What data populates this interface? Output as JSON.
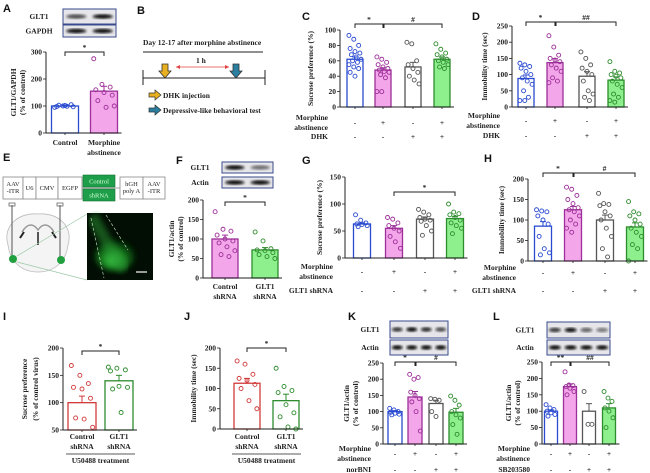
{
  "colors": {
    "blue": "#2a4bd0",
    "magenta": "#9c2f98",
    "pink": "#f4a6ea",
    "green_edge": "#2e8c2e",
    "green_fill": "#8df08d",
    "gray_edge": "#555555",
    "red": "#d23a3a",
    "blot_frame": "#3a4a8e"
  },
  "panel_letters": [
    "A",
    "B",
    "C",
    "D",
    "E",
    "F",
    "G",
    "H",
    "I",
    "J",
    "K",
    "L"
  ],
  "blots": {
    "A": {
      "rows": [
        "GLT1",
        "GAPDH"
      ]
    },
    "F": {
      "rows": [
        "GLT1",
        "Actin"
      ]
    },
    "K": {
      "rows": [
        "GLT1",
        "Actin"
      ]
    },
    "L": {
      "rows": [
        "GLT1",
        "Actin"
      ]
    }
  },
  "timeline": {
    "title": "Day 12-17 after morphine abstinence",
    "interval": "1 h",
    "legend": [
      {
        "label": "DHK injection",
        "icon": "arrow-down-icon",
        "color": "#e8b020"
      },
      {
        "label": "Depressive-like  behavioral test",
        "icon": "arrow-down-icon",
        "color": "#2a7ea0"
      }
    ]
  },
  "construct": {
    "boxes": [
      "AAV\n-ITR",
      "U6",
      "CMV",
      "EGFP",
      "hGH\npoly A",
      "AAV\n-ITR"
    ],
    "inserts": [
      "Control",
      "shRNA"
    ]
  },
  "chart_data": [
    {
      "panel": "A",
      "type": "bar",
      "ylabel": [
        "GLT1/GAPDH",
        "(% of control)"
      ],
      "ylim": [
        0,
        300
      ],
      "yticks": [
        "0",
        "100",
        "200",
        "300"
      ],
      "categories": [
        [
          "Control"
        ],
        [
          "Morphine",
          "abstinence"
        ]
      ],
      "bars": [
        {
          "value": 100,
          "sem": 3,
          "fill": "#ffffff",
          "stroke": "#2a4bd0",
          "points": [
            95,
            100,
            105,
            98,
            102,
            97,
            103,
            99
          ]
        },
        {
          "value": 155,
          "sem": 18,
          "fill": "#f4a6ea",
          "stroke": "#9c2f98",
          "points": [
            275,
            180,
            170,
            160,
            150,
            140,
            120,
            95,
            100
          ]
        }
      ],
      "brackets": [
        {
          "from": 0,
          "to": 1,
          "label": "*"
        }
      ],
      "rows": []
    },
    {
      "panel": "C",
      "type": "bar",
      "ylabel": [
        "Sucrose preference (%)"
      ],
      "ylim": [
        0,
        100
      ],
      "yticks": [
        "0",
        "20",
        "40",
        "60",
        "80",
        "100"
      ],
      "categories": [],
      "bars": [
        {
          "value": 62,
          "sem": 3,
          "fill": "#ffffff",
          "stroke": "#2a4bd0",
          "points": [
            93,
            88,
            80,
            76,
            72,
            70,
            68,
            65,
            62,
            60,
            58,
            55,
            52,
            50,
            45,
            40
          ]
        },
        {
          "value": 48,
          "sem": 3,
          "fill": "#f4a6ea",
          "stroke": "#9c2f98",
          "points": [
            65,
            62,
            58,
            55,
            52,
            50,
            48,
            46,
            45,
            42,
            38,
            20,
            20
          ]
        },
        {
          "value": 52,
          "sem": 6,
          "fill": "#ffffff",
          "stroke": "#555555",
          "points": [
            84,
            82,
            60,
            55,
            50,
            45,
            40,
            35,
            30
          ]
        },
        {
          "value": 62,
          "sem": 3,
          "fill": "#8df08d",
          "stroke": "#2e8c2e",
          "points": [
            82,
            75,
            70,
            68,
            65,
            62,
            60,
            58,
            55,
            52,
            50
          ]
        }
      ],
      "brackets": [
        {
          "from": 0,
          "to": 1,
          "label": "*"
        },
        {
          "from": 1,
          "to": 3,
          "label": "#"
        }
      ],
      "rows": [
        {
          "label": [
            "Morphine",
            "abstinence"
          ],
          "signs": [
            "-",
            "+",
            "-",
            "+"
          ]
        },
        {
          "label": [
            "DHK"
          ],
          "signs": [
            "-",
            "-",
            "+",
            "+"
          ]
        }
      ]
    },
    {
      "panel": "D",
      "type": "bar",
      "ylabel": [
        "Immobility time (sec)"
      ],
      "ylim": [
        0,
        250
      ],
      "yticks": [
        "0",
        "50",
        "100",
        "150",
        "200",
        "250"
      ],
      "categories": [],
      "bars": [
        {
          "value": 88,
          "sem": 11,
          "fill": "#ffffff",
          "stroke": "#2a4bd0",
          "points": [
            135,
            130,
            125,
            120,
            110,
            100,
            90,
            80,
            70,
            50,
            30,
            20,
            20
          ]
        },
        {
          "value": 137,
          "sem": 12,
          "fill": "#f4a6ea",
          "stroke": "#9c2f98",
          "points": [
            220,
            185,
            160,
            150,
            145,
            140,
            130,
            120,
            110,
            90,
            80,
            75
          ]
        },
        {
          "value": 95,
          "sem": 14,
          "fill": "#ffffff",
          "stroke": "#555555",
          "points": [
            170,
            150,
            130,
            120,
            110,
            100,
            80,
            50,
            40,
            30,
            20
          ]
        },
        {
          "value": 83,
          "sem": 10,
          "fill": "#8df08d",
          "stroke": "#2e8c2e",
          "points": [
            140,
            110,
            105,
            100,
            95,
            90,
            80,
            70,
            60,
            40,
            30,
            20,
            15
          ]
        }
      ],
      "brackets": [
        {
          "from": 0,
          "to": 1,
          "label": "*"
        },
        {
          "from": 1,
          "to": 3,
          "label": "##"
        }
      ],
      "rows": [
        {
          "label": [
            "Morphine",
            "abstinence"
          ],
          "signs": [
            "-",
            "+",
            "-",
            "+"
          ]
        },
        {
          "label": [
            "DHK"
          ],
          "signs": [
            "-",
            "-",
            "+",
            "+"
          ]
        }
      ]
    },
    {
      "panel": "F",
      "type": "bar",
      "ylabel": [
        "GLT1/actin",
        "(% of control)"
      ],
      "ylim": [
        0,
        200
      ],
      "yticks": [
        "0",
        "50",
        "100",
        "150",
        "200"
      ],
      "categories": [
        [
          "Control",
          "shRNA"
        ],
        [
          "GLT1",
          "shRNA"
        ]
      ],
      "bars": [
        {
          "value": 100,
          "sem": 10,
          "fill": "#f4a6ea",
          "stroke": "#9c2f98",
          "points": [
            170,
            125,
            120,
            110,
            100,
            95,
            90,
            80,
            70,
            60,
            55
          ]
        },
        {
          "value": 72,
          "sem": 6,
          "fill": "#8df08d",
          "stroke": "#2e8c2e",
          "points": [
            118,
            95,
            75,
            72,
            70,
            65,
            60,
            55,
            50
          ]
        }
      ],
      "brackets": [
        {
          "from": 0,
          "to": 1,
          "label": "*"
        }
      ],
      "rows": []
    },
    {
      "panel": "G",
      "type": "bar",
      "ylabel": [
        "Sucrose preference (%)"
      ],
      "ylim": [
        0,
        150
      ],
      "yticks": [
        "0",
        "50",
        "100",
        "150"
      ],
      "categories": [],
      "bars": [
        {
          "value": 63,
          "sem": 2,
          "fill": "#ffffff",
          "stroke": "#2a4bd0",
          "points": [
            80,
            70,
            65,
            63,
            62,
            60,
            58
          ]
        },
        {
          "value": 55,
          "sem": 5,
          "fill": "#f4a6ea",
          "stroke": "#9c2f98",
          "points": [
            75,
            72,
            65,
            60,
            55,
            50,
            40,
            30,
            18
          ]
        },
        {
          "value": 72,
          "sem": 4,
          "fill": "#ffffff",
          "stroke": "#555555",
          "points": [
            90,
            85,
            80,
            75,
            72,
            70,
            68,
            60,
            50,
            42
          ]
        },
        {
          "value": 73,
          "sem": 4,
          "fill": "#8df08d",
          "stroke": "#2e8c2e",
          "points": [
            100,
            85,
            82,
            80,
            75,
            70,
            65,
            60,
            55,
            45
          ]
        }
      ],
      "brackets": [
        {
          "from": 1,
          "to": 3,
          "label": "*"
        }
      ],
      "rows": [
        {
          "label": [
            "Morphine",
            "abstinence"
          ],
          "signs": [
            "-",
            "+",
            "-",
            "+"
          ]
        },
        {
          "label": [
            "GLT1 shRNA"
          ],
          "signs": [
            "-",
            "-",
            "+",
            "+"
          ]
        }
      ]
    },
    {
      "panel": "H",
      "type": "bar",
      "ylabel": [
        "Immobility time (sec)"
      ],
      "ylim": [
        0,
        200
      ],
      "yticks": [
        "0",
        "50",
        "100",
        "150",
        "200"
      ],
      "categories": [],
      "bars": [
        {
          "value": 85,
          "sem": 11,
          "fill": "#ffffff",
          "stroke": "#2a4bd0",
          "points": [
            125,
            122,
            120,
            110,
            100,
            90,
            60,
            30,
            20,
            15
          ]
        },
        {
          "value": 125,
          "sem": 8,
          "fill": "#f4a6ea",
          "stroke": "#9c2f98",
          "points": [
            180,
            175,
            160,
            150,
            140,
            130,
            125,
            120,
            110,
            100,
            90,
            80,
            70
          ]
        },
        {
          "value": 100,
          "sem": 12,
          "fill": "#ffffff",
          "stroke": "#555555",
          "points": [
            165,
            140,
            138,
            135,
            120,
            110,
            100,
            80,
            60,
            30,
            10
          ]
        },
        {
          "value": 83,
          "sem": 10,
          "fill": "#8df08d",
          "stroke": "#2e8c2e",
          "points": [
            145,
            120,
            115,
            110,
            100,
            90,
            80,
            70,
            60,
            40,
            30,
            0
          ]
        }
      ],
      "brackets": [
        {
          "from": 0,
          "to": 1,
          "label": "*"
        },
        {
          "from": 1,
          "to": 3,
          "label": "#"
        }
      ],
      "rows": [
        {
          "label": [
            "Morphine",
            "abstinence"
          ],
          "signs": [
            "-",
            "+",
            "-",
            "+"
          ]
        },
        {
          "label": [
            "GLT1 shRNA"
          ],
          "signs": [
            "-",
            "-",
            "+",
            "+"
          ]
        }
      ]
    },
    {
      "panel": "I",
      "type": "bar",
      "ylabel": [
        "Sucrose preference",
        "(% of control virus)"
      ],
      "ylim": [
        50,
        200
      ],
      "yticks": [
        "50",
        "100",
        "150",
        "200"
      ],
      "categories": [
        [
          "Control",
          "shRNA"
        ],
        [
          "GLT1",
          "shRNA"
        ]
      ],
      "group_label": "U50488 treatment",
      "bars": [
        {
          "value": 100,
          "sem": 12,
          "fill": "#ffffff",
          "stroke": "#d23a3a",
          "points": [
            168,
            150,
            135,
            128,
            125,
            108,
            72,
            70,
            55
          ]
        },
        {
          "value": 140,
          "sem": 10,
          "fill": "#ffffff",
          "stroke": "#2e8c2e",
          "points": [
            165,
            163,
            160,
            158,
            130,
            128,
            125,
            82
          ]
        }
      ],
      "brackets": [
        {
          "from": 0,
          "to": 1,
          "label": "*"
        }
      ],
      "rows": []
    },
    {
      "panel": "J",
      "type": "bar",
      "ylabel": [
        "Immobility time (sec)"
      ],
      "ylim": [
        0,
        200
      ],
      "yticks": [
        "0",
        "50",
        "100",
        "150",
        "200"
      ],
      "categories": [
        [
          "Control",
          "shRNA"
        ],
        [
          "GLT1",
          "shRNA"
        ]
      ],
      "group_label": "U50488 treatment",
      "bars": [
        {
          "value": 113,
          "sem": 12,
          "fill": "#ffffff",
          "stroke": "#d23a3a",
          "points": [
            168,
            160,
            135,
            125,
            120,
            110,
            100,
            70,
            50
          ]
        },
        {
          "value": 70,
          "sem": 16,
          "fill": "#ffffff",
          "stroke": "#2e8c2e",
          "points": [
            150,
            105,
            95,
            90,
            60,
            40,
            30,
            5,
            0
          ]
        }
      ],
      "brackets": [
        {
          "from": 0,
          "to": 1,
          "label": "*"
        }
      ],
      "rows": []
    },
    {
      "panel": "K",
      "type": "bar",
      "ylabel": [
        "GLT1/actin",
        "(% of control)"
      ],
      "ylim": [
        0,
        250
      ],
      "yticks": [
        "0",
        "50",
        "100",
        "150",
        "200",
        "250"
      ],
      "categories": [],
      "bars": [
        {
          "value": 100,
          "sem": 3,
          "fill": "#ffffff",
          "stroke": "#2a4bd0",
          "points": [
            110,
            105,
            100,
            98,
            95,
            92,
            90
          ]
        },
        {
          "value": 145,
          "sem": 17,
          "fill": "#f4a6ea",
          "stroke": "#9c2f98",
          "points": [
            215,
            200,
            205,
            160,
            150,
            140,
            130,
            100,
            40
          ]
        },
        {
          "value": 125,
          "sem": 10,
          "fill": "#ffffff",
          "stroke": "#555555",
          "points": [
            140,
            138,
            135,
            100,
            85
          ]
        },
        {
          "value": 98,
          "sem": 12,
          "fill": "#8df08d",
          "stroke": "#2e8c2e",
          "points": [
            148,
            135,
            120,
            100,
            90,
            80,
            60,
            30
          ]
        }
      ],
      "brackets": [
        {
          "from": 0,
          "to": 1,
          "label": "*"
        },
        {
          "from": 1,
          "to": 3,
          "label": "#"
        }
      ],
      "rows": [
        {
          "label": [
            "Morphine",
            "abstinence"
          ],
          "signs": [
            "-",
            "+",
            "-",
            "+"
          ]
        },
        {
          "label": [
            "norBNI"
          ],
          "signs": [
            "-",
            "-",
            "+",
            "+"
          ]
        }
      ]
    },
    {
      "panel": "L",
      "type": "bar",
      "ylabel": [
        "GLT1/actin",
        "(% of control)"
      ],
      "ylim": [
        0,
        250
      ],
      "yticks": [
        "0",
        "50",
        "100",
        "150",
        "200",
        "250"
      ],
      "categories": [],
      "bars": [
        {
          "value": 100,
          "sem": 4,
          "fill": "#ffffff",
          "stroke": "#2a4bd0",
          "points": [
            120,
            110,
            105,
            100,
            95,
            90,
            85
          ]
        },
        {
          "value": 175,
          "sem": 8,
          "fill": "#f4a6ea",
          "stroke": "#9c2f98",
          "points": [
            220,
            180,
            178,
            175,
            170,
            160,
            150
          ]
        },
        {
          "value": 100,
          "sem": 23,
          "fill": "#ffffff",
          "stroke": "#555555",
          "points": [
            160,
            60,
            60
          ]
        },
        {
          "value": 110,
          "sem": 13,
          "fill": "#8df08d",
          "stroke": "#2e8c2e",
          "points": [
            160,
            140,
            130,
            110,
            100,
            80,
            50
          ]
        }
      ],
      "brackets": [
        {
          "from": 0,
          "to": 1,
          "label": "**"
        },
        {
          "from": 1,
          "to": 3,
          "label": "##"
        }
      ],
      "rows": [
        {
          "label": [
            "Morphine",
            "abstinence"
          ],
          "signs": [
            "-",
            "+",
            "-",
            "+"
          ]
        },
        {
          "label": [
            "SB203580"
          ],
          "signs": [
            "-",
            "-",
            "+",
            "+"
          ]
        }
      ]
    }
  ]
}
